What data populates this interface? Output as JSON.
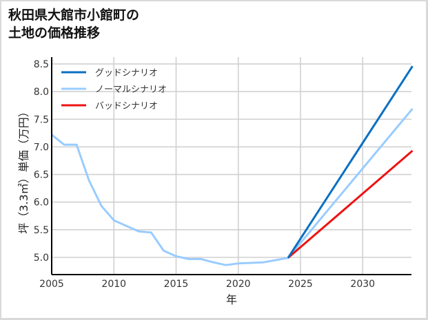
{
  "title": "秋田県大館市小館町の\n土地の価格推移",
  "chart_data": {
    "type": "line",
    "title": "秋田県大館市小館町の土地の価格推移",
    "xlabel": "年",
    "ylabel": "坪（3.3㎡）単価（万円）",
    "xlim": [
      2005,
      2034
    ],
    "ylim": [
      4.68,
      8.55
    ],
    "xticks": [
      2005,
      2010,
      2015,
      2020,
      2025,
      2030
    ],
    "yticks": [
      5.0,
      5.5,
      6.0,
      6.5,
      7.0,
      7.5,
      8.0,
      8.5
    ],
    "grid": true,
    "legend_position": "upper left",
    "series": [
      {
        "name": "グッドシナリオ",
        "color": "#0a6fc2",
        "x": [
          2024,
          2034
        ],
        "values": [
          4.99,
          8.46
        ]
      },
      {
        "name": "ノーマルシナリオ",
        "color": "#99ccff",
        "x": [
          2005,
          2006,
          2007,
          2008,
          2009,
          2010,
          2011,
          2012,
          2013,
          2014,
          2015,
          2016,
          2017,
          2018,
          2019,
          2020,
          2021,
          2022,
          2023,
          2024,
          2034
        ],
        "values": [
          7.22,
          7.04,
          7.04,
          6.39,
          5.93,
          5.67,
          5.57,
          5.47,
          5.45,
          5.12,
          5.02,
          4.97,
          4.97,
          4.91,
          4.86,
          4.89,
          4.9,
          4.91,
          4.95,
          4.99,
          7.69
        ]
      },
      {
        "name": "バッドシナリオ",
        "color": "#ee1111",
        "x": [
          2024,
          2034
        ],
        "values": [
          4.99,
          6.93
        ]
      }
    ]
  }
}
